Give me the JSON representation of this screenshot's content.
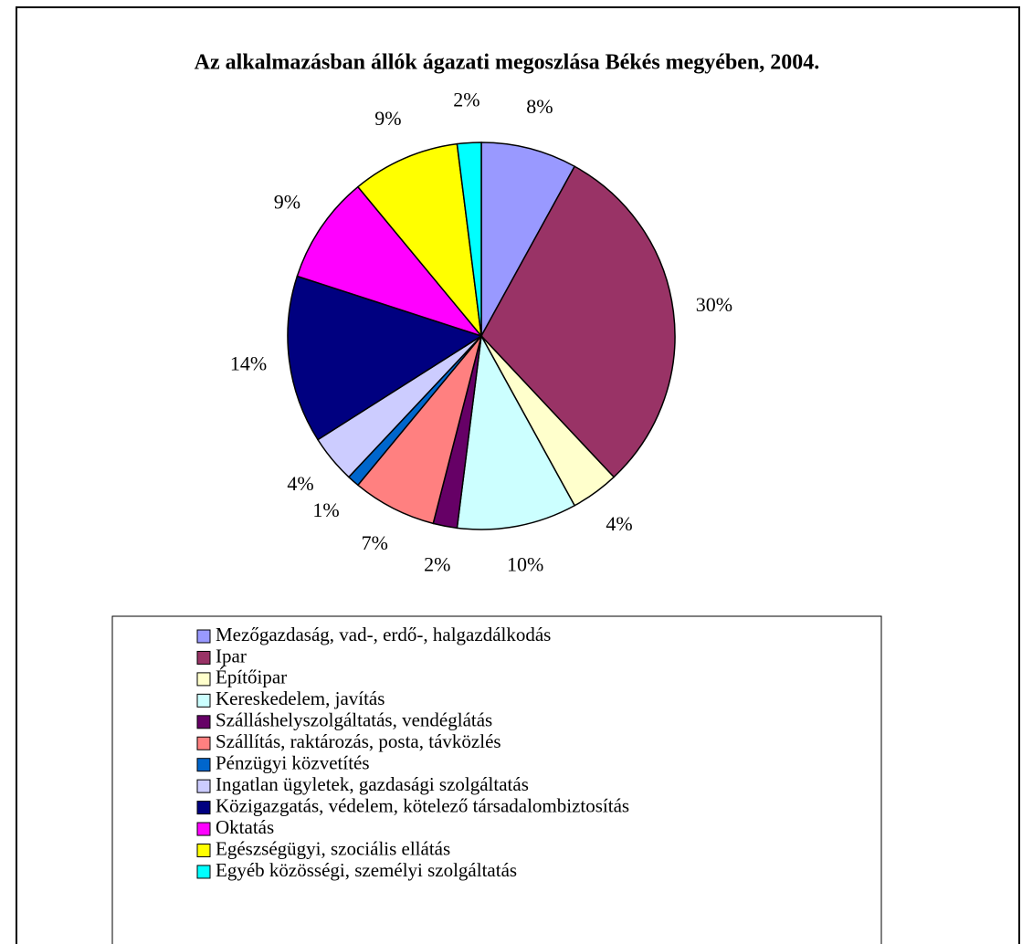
{
  "chart_data": {
    "type": "pie",
    "title": "Az alkalmazásban állók ágazati megoszlása Békés megyében, 2004.",
    "categories": [
      "Mezőgazdaság, vad-, erdő-, halgazdálkodás",
      "Ipar",
      "Építőipar",
      "Kereskedelem, javítás",
      "Szálláshelyszolgáltatás, vendéglátás",
      "Szállítás, raktározás, posta, távközlés",
      "Pénzügyi közvetítés",
      "Ingatlan ügyletek, gazdasági szolgáltatás",
      "Közigazgatás, védelem, kötelező társadalombiztosítás",
      "Oktatás",
      "Egészségügyi, szociális ellátás",
      "Egyéb közösségi, személyi szolgáltatás"
    ],
    "values": [
      8,
      30,
      4,
      10,
      2,
      7,
      1,
      4,
      14,
      9,
      9,
      2
    ],
    "value_labels": [
      "8%",
      "30%",
      "4%",
      "10%",
      "2%",
      "7%",
      "1%",
      "4%",
      "14%",
      "9%",
      "9%",
      "2%"
    ],
    "colors": [
      "#9999ff",
      "#993366",
      "#ffffcc",
      "#ccffff",
      "#660066",
      "#ff8080",
      "#0066cc",
      "#ccccff",
      "#000080",
      "#ff00ff",
      "#ffff00",
      "#00ffff"
    ],
    "legend": "bottom"
  }
}
